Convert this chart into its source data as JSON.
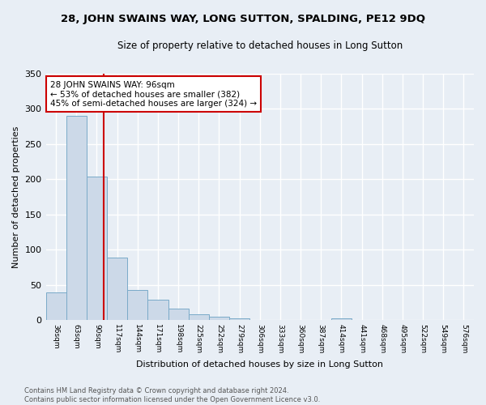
{
  "title": "28, JOHN SWAINS WAY, LONG SUTTON, SPALDING, PE12 9DQ",
  "subtitle": "Size of property relative to detached houses in Long Sutton",
  "xlabel": "Distribution of detached houses by size in Long Sutton",
  "ylabel": "Number of detached properties",
  "bin_labels": [
    "36sqm",
    "63sqm",
    "90sqm",
    "117sqm",
    "144sqm",
    "171sqm",
    "198sqm",
    "225sqm",
    "252sqm",
    "279sqm",
    "306sqm",
    "333sqm",
    "360sqm",
    "387sqm",
    "414sqm",
    "441sqm",
    "468sqm",
    "495sqm",
    "522sqm",
    "549sqm",
    "576sqm"
  ],
  "bar_values": [
    40,
    290,
    204,
    89,
    43,
    29,
    16,
    8,
    5,
    3,
    0,
    0,
    0,
    0,
    3,
    0,
    0,
    0,
    0,
    0,
    0
  ],
  "bar_color": "#ccd9e8",
  "bar_edge_color": "#7aaac8",
  "vline_color": "#cc0000",
  "annotation_text": "28 JOHN SWAINS WAY: 96sqm\n← 53% of detached houses are smaller (382)\n45% of semi-detached houses are larger (324) →",
  "annotation_box_color": "white",
  "annotation_box_edge_color": "#cc0000",
  "footer_text": "Contains HM Land Registry data © Crown copyright and database right 2024.\nContains public sector information licensed under the Open Government Licence v3.0.",
  "background_color": "#e8eef5",
  "ylim": [
    0,
    350
  ],
  "yticks": [
    0,
    50,
    100,
    150,
    200,
    250,
    300,
    350
  ]
}
